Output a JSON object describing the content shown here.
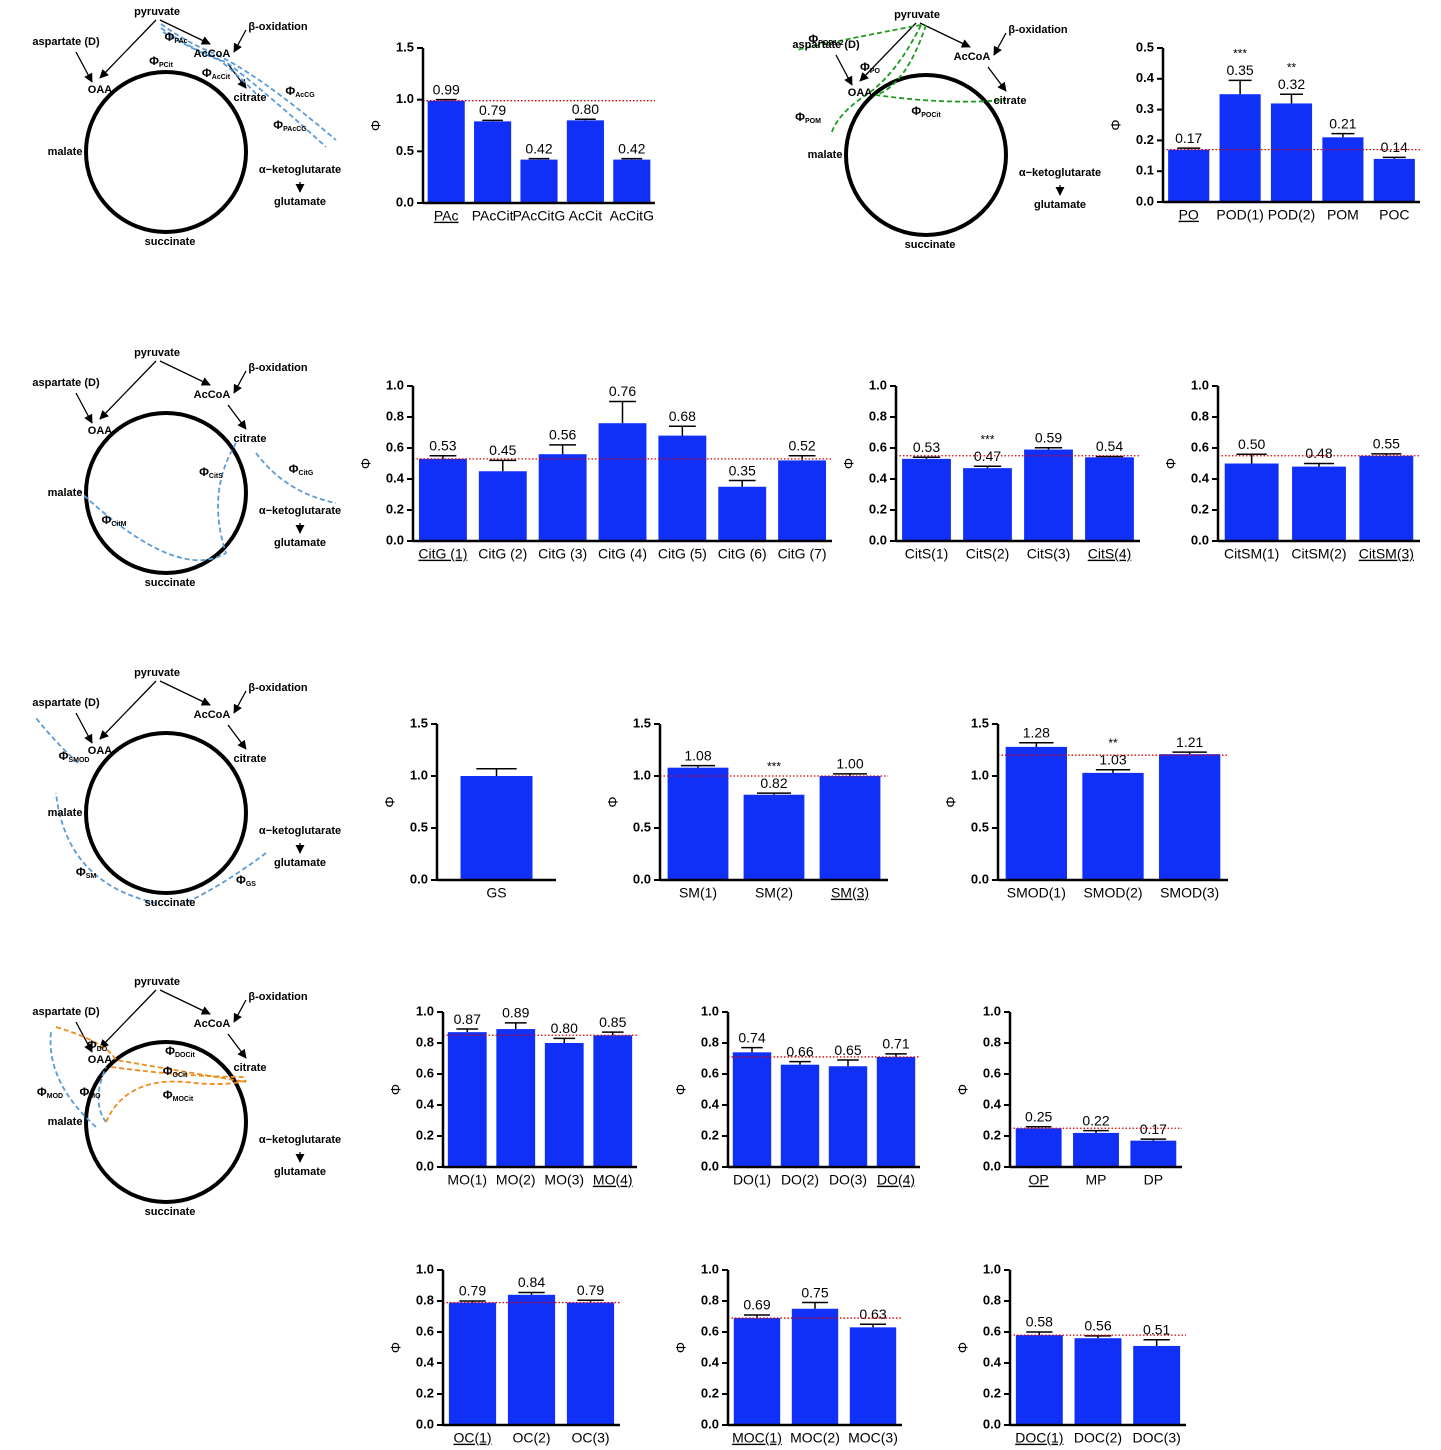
{
  "chart_data": [
    {
      "type": "bar",
      "categories": [
        "PAc",
        "PAcCit",
        "PAcCitG",
        "AcCit",
        "AcCitG"
      ],
      "values": [
        0.99,
        0.79,
        0.42,
        0.8,
        0.42
      ],
      "errors": [
        0.01,
        0.01,
        0.01,
        0.01,
        0.01
      ],
      "value_labels": [
        "0.99",
        "0.79",
        "0.42",
        "0.80",
        "0.42"
      ],
      "ylabel": "Φ",
      "ylim": [
        0,
        1.5
      ],
      "yticks": [
        {
          "value": 0,
          "label": "0.0"
        },
        0.5,
        {
          "value": 1,
          "label": "1.0"
        },
        1.5
      ],
      "ref_line": 0.99,
      "underlined_index": 0,
      "color": "#1030f8",
      "ref_color": "#e00000"
    },
    {
      "type": "bar",
      "categories": [
        "PO",
        "POD(1)",
        "POD(2)",
        "POM",
        "POC"
      ],
      "values": [
        0.17,
        0.35,
        0.32,
        0.21,
        0.14
      ],
      "errors": [
        0.005,
        0.045,
        0.03,
        0.012,
        0.005
      ],
      "value_labels": [
        "0.17",
        "0.35",
        "0.32",
        "0.21",
        "0.14"
      ],
      "significance": [
        null,
        "***",
        "**",
        null,
        null
      ],
      "ylabel": "Φ",
      "ylim": [
        0,
        0.5
      ],
      "yticks": [
        {
          "value": 0,
          "label": "0.0"
        },
        0.1,
        0.2,
        0.3,
        0.4,
        0.5
      ],
      "ref_line": 0.17,
      "underlined_index": 0,
      "color": "#1030f8",
      "ref_color": "#e00000"
    },
    {
      "type": "bar",
      "categories": [
        "CitG (1)",
        "CitG (2)",
        "CitG (3)",
        "CitG (4)",
        "CitG (5)",
        "CitG (6)",
        "CitG (7)"
      ],
      "values": [
        0.53,
        0.45,
        0.56,
        0.76,
        0.68,
        0.35,
        0.52
      ],
      "errors": [
        0.02,
        0.07,
        0.06,
        0.14,
        0.06,
        0.04,
        0.03
      ],
      "value_labels": [
        "0.53",
        "0.45",
        "0.56",
        "0.76",
        "0.68",
        "0.35",
        "0.52"
      ],
      "ylabel": "Φ",
      "ylim": [
        0,
        1
      ],
      "yticks": [
        {
          "value": 0,
          "label": "0.0"
        },
        0.2,
        0.4,
        0.6,
        0.8,
        {
          "value": 1,
          "label": "1.0"
        }
      ],
      "ref_line": 0.53,
      "underlined_index": 0,
      "color": "#1030f8",
      "ref_color": "#e00000"
    },
    {
      "type": "bar",
      "categories": [
        "CitS(1)",
        "CitS(2)",
        "CitS(3)",
        "CitS(4)"
      ],
      "values": [
        0.53,
        0.47,
        0.59,
        0.54
      ],
      "errors": [
        0.01,
        0.012,
        0.012,
        0.005
      ],
      "value_labels": [
        "0.53",
        "0.47",
        "0.59",
        "0.54"
      ],
      "significance": [
        null,
        "***",
        null,
        null
      ],
      "ylabel": "Φ",
      "ylim": [
        0,
        1
      ],
      "yticks": [
        {
          "value": 0,
          "label": "0.0"
        },
        0.2,
        0.4,
        0.6,
        0.8,
        {
          "value": 1,
          "label": "1.0"
        }
      ],
      "ref_line": 0.55,
      "underlined_index": 3,
      "color": "#1030f8",
      "ref_color": "#e00000"
    },
    {
      "type": "bar",
      "categories": [
        "CitSM(1)",
        "CitSM(2)",
        "CitSM(3)"
      ],
      "values": [
        0.5,
        0.48,
        0.55
      ],
      "errors": [
        0.06,
        0.02,
        0.012
      ],
      "value_labels": [
        "0.50",
        "0.48",
        "0.55"
      ],
      "ylabel": "Φ",
      "ylim": [
        0,
        1
      ],
      "yticks": [
        {
          "value": 0,
          "label": "0.0"
        },
        0.2,
        0.4,
        0.6,
        0.8,
        {
          "value": 1,
          "label": "1.0"
        }
      ],
      "ref_line": 0.55,
      "underlined_index": 2,
      "color": "#1030f8",
      "ref_color": "#e00000"
    },
    {
      "type": "bar",
      "categories": [
        "GS"
      ],
      "values": [
        1.0
      ],
      "errors": [
        0.07
      ],
      "ylabel": "Φ",
      "ylim": [
        0,
        1.5
      ],
      "yticks": [
        {
          "value": 0,
          "label": "0.0"
        },
        0.5,
        {
          "value": 1,
          "label": "1.0"
        },
        1.5
      ],
      "color": "#1030f8"
    },
    {
      "type": "bar",
      "categories": [
        "SM(1)",
        "SM(2)",
        "SM(3)"
      ],
      "values": [
        1.08,
        0.82,
        1.0
      ],
      "errors": [
        0.02,
        0.015,
        0.02
      ],
      "value_labels": [
        "1.08",
        "0.82",
        "1.00"
      ],
      "significance": [
        null,
        "***",
        null
      ],
      "ylabel": "Φ",
      "ylim": [
        0,
        1.5
      ],
      "yticks": [
        {
          "value": 0,
          "label": "0.0"
        },
        0.5,
        {
          "value": 1,
          "label": "1.0"
        },
        1.5
      ],
      "ref_line": 1.0,
      "underlined_index": 2,
      "color": "#1030f8",
      "ref_color": "#e00000"
    },
    {
      "type": "bar",
      "categories": [
        "SMOD(1)",
        "SMOD(2)",
        "SMOD(3)"
      ],
      "values": [
        1.28,
        1.03,
        1.21
      ],
      "errors": [
        0.04,
        0.03,
        0.02
      ],
      "value_labels": [
        "1.28",
        "1.03",
        "1.21"
      ],
      "significance": [
        null,
        "**",
        null
      ],
      "ylabel": "Φ",
      "ylim": [
        0,
        1.5
      ],
      "yticks": [
        {
          "value": 0,
          "label": "0.0"
        },
        0.5,
        {
          "value": 1,
          "label": "1.0"
        },
        1.5
      ],
      "ref_line": 1.2,
      "color": "#1030f8",
      "ref_color": "#e00000"
    },
    {
      "type": "bar",
      "categories": [
        "MO(1)",
        "MO(2)",
        "MO(3)",
        "MO(4)"
      ],
      "values": [
        0.87,
        0.89,
        0.8,
        0.85
      ],
      "errors": [
        0.02,
        0.04,
        0.03,
        0.02
      ],
      "value_labels": [
        "0.87",
        "0.89",
        "0.80",
        "0.85"
      ],
      "ylabel": "Φ",
      "ylim": [
        0,
        1
      ],
      "yticks": [
        {
          "value": 0,
          "label": "0.0"
        },
        0.2,
        0.4,
        0.6,
        0.8,
        {
          "value": 1,
          "label": "1.0"
        }
      ],
      "ref_line": 0.85,
      "underlined_index": 3,
      "color": "#1030f8",
      "ref_color": "#e00000"
    },
    {
      "type": "bar",
      "categories": [
        "DO(1)",
        "DO(2)",
        "DO(3)",
        "DO(4)"
      ],
      "values": [
        0.74,
        0.66,
        0.65,
        0.71
      ],
      "errors": [
        0.03,
        0.02,
        0.04,
        0.02
      ],
      "value_labels": [
        "0.74",
        "0.66",
        "0.65",
        "0.71"
      ],
      "ylabel": "Φ",
      "ylim": [
        0,
        1
      ],
      "yticks": [
        {
          "value": 0,
          "label": "0.0"
        },
        0.2,
        0.4,
        0.6,
        0.8,
        {
          "value": 1,
          "label": "1.0"
        }
      ],
      "ref_line": 0.71,
      "underlined_index": 3,
      "color": "#1030f8",
      "ref_color": "#e00000"
    },
    {
      "type": "bar",
      "categories": [
        "OP",
        "MP",
        "DP"
      ],
      "values": [
        0.25,
        0.22,
        0.17
      ],
      "errors": [
        0.01,
        0.015,
        0.01
      ],
      "value_labels": [
        "0.25",
        "0.22",
        "0.17"
      ],
      "ylabel": "Φ",
      "ylim": [
        0,
        1
      ],
      "yticks": [
        {
          "value": 0,
          "label": "0.0"
        },
        0.2,
        0.4,
        0.6,
        0.8,
        {
          "value": 1,
          "label": "1.0"
        }
      ],
      "ref_line": 0.25,
      "underlined_index": 0,
      "color": "#1030f8",
      "ref_color": "#e00000"
    },
    {
      "type": "bar",
      "categories": [
        "OC(1)",
        "OC(2)",
        "OC(3)"
      ],
      "values": [
        0.79,
        0.84,
        0.79
      ],
      "errors": [
        0.01,
        0.015,
        0.015
      ],
      "value_labels": [
        "0.79",
        "0.84",
        "0.79"
      ],
      "ylabel": "Φ",
      "ylim": [
        0,
        1
      ],
      "yticks": [
        {
          "value": 0,
          "label": "0.0"
        },
        0.2,
        0.4,
        0.6,
        0.8,
        {
          "value": 1,
          "label": "1.0"
        }
      ],
      "ref_line": 0.79,
      "underlined_index": 0,
      "color": "#1030f8",
      "ref_color": "#e00000"
    },
    {
      "type": "bar",
      "categories": [
        "MOC(1)",
        "MOC(2)",
        "MOC(3)"
      ],
      "values": [
        0.69,
        0.75,
        0.63
      ],
      "errors": [
        0.02,
        0.04,
        0.02
      ],
      "value_labels": [
        "0.69",
        "0.75",
        "0.63"
      ],
      "ylabel": "Φ",
      "ylim": [
        0,
        1
      ],
      "yticks": [
        {
          "value": 0,
          "label": "0.0"
        },
        0.2,
        0.4,
        0.6,
        0.8,
        {
          "value": 1,
          "label": "1.0"
        }
      ],
      "ref_line": 0.69,
      "underlined_index": 0,
      "color": "#1030f8",
      "ref_color": "#e00000"
    },
    {
      "type": "bar",
      "categories": [
        "DOC(1)",
        "DOC(2)",
        "DOC(3)"
      ],
      "values": [
        0.58,
        0.56,
        0.51
      ],
      "errors": [
        0.02,
        0.015,
        0.04
      ],
      "value_labels": [
        "0.58",
        "0.56",
        "0.51"
      ],
      "ylabel": "Φ",
      "ylim": [
        0,
        1
      ],
      "yticks": [
        {
          "value": 0,
          "label": "0.0"
        },
        0.2,
        0.4,
        0.6,
        0.8,
        {
          "value": 1,
          "label": "1.0"
        }
      ],
      "ref_line": 0.58,
      "underlined_index": 0,
      "color": "#1030f8",
      "ref_color": "#e00000"
    }
  ],
  "diagrams": [
    {
      "metabolites": [
        "pyruvate",
        "β-oxidation",
        "aspartate (D)",
        "OAA",
        "AcCoA",
        "citrate",
        "malate",
        "α−ketoglutarate",
        "glutamate",
        "succinate"
      ],
      "fluxes": [
        {
          "symbol": "Φ",
          "sub": "PAc",
          "color": "#5b9bd5"
        },
        {
          "symbol": "Φ",
          "sub": "PCit",
          "color": "#5b9bd5"
        },
        {
          "symbol": "Φ",
          "sub": "AcCit",
          "color": "#5b9bd5"
        },
        {
          "symbol": "Φ",
          "sub": "AcCG",
          "color": "#5b9bd5"
        },
        {
          "symbol": "Φ",
          "sub": "PAcCG",
          "color": "#5b9bd5"
        }
      ]
    },
    {
      "metabolites": [
        "pyruvate",
        "β-oxidation",
        "aspartate (D)",
        "OAA",
        "AcCoA",
        "citrate",
        "malate",
        "α−ketoglutarate",
        "glutamate",
        "succinate"
      ],
      "fluxes": [
        {
          "symbol": "Φ",
          "sub": "POD1-2",
          "color": "#1e9a1e"
        },
        {
          "symbol": "Φ",
          "sub": "PO",
          "color": "#1e9a1e"
        },
        {
          "symbol": "Φ",
          "sub": "POM",
          "color": "#1e9a1e"
        },
        {
          "symbol": "Φ",
          "sub": "POCit",
          "color": "#1e9a1e"
        }
      ]
    },
    {
      "metabolites": [
        "pyruvate",
        "β-oxidation",
        "aspartate (D)",
        "OAA",
        "AcCoA",
        "citrate",
        "malate",
        "α−ketoglutarate",
        "glutamate",
        "succinate"
      ],
      "fluxes": [
        {
          "symbol": "Φ",
          "sub": "CitG",
          "color": "#5b9bd5"
        },
        {
          "symbol": "Φ",
          "sub": "CitS",
          "color": "#5b9bd5"
        },
        {
          "symbol": "Φ",
          "sub": "CitM",
          "color": "#5b9bd5"
        }
      ]
    },
    {
      "metabolites": [
        "pyruvate",
        "β-oxidation",
        "aspartate (D)",
        "OAA",
        "AcCoA",
        "citrate",
        "malate",
        "α−ketoglutarate",
        "glutamate",
        "succinate"
      ],
      "fluxes": [
        {
          "symbol": "Φ",
          "sub": "SMOD",
          "color": "#5b9bd5"
        },
        {
          "symbol": "Φ",
          "sub": "SM",
          "color": "#5b9bd5"
        },
        {
          "symbol": "Φ",
          "sub": "GS",
          "color": "#5b9bd5"
        }
      ]
    },
    {
      "metabolites": [
        "pyruvate",
        "β-oxidation",
        "aspartate (D)",
        "OAA",
        "AcCoA",
        "citrate",
        "malate",
        "α−ketoglutarate",
        "glutamate",
        "succinate"
      ],
      "fluxes": [
        {
          "symbol": "Φ",
          "sub": "DO",
          "color": "#f08a1c"
        },
        {
          "symbol": "Φ",
          "sub": "MO",
          "color": "#5b9bd5"
        },
        {
          "symbol": "Φ",
          "sub": "MOD",
          "color": "#5b9bd5"
        },
        {
          "symbol": "Φ",
          "sub": "DOCit",
          "color": "#f08a1c"
        },
        {
          "symbol": "Φ",
          "sub": "OCit",
          "color": "#f08a1c"
        },
        {
          "symbol": "Φ",
          "sub": "MOCit",
          "color": "#f08a1c"
        }
      ]
    }
  ]
}
